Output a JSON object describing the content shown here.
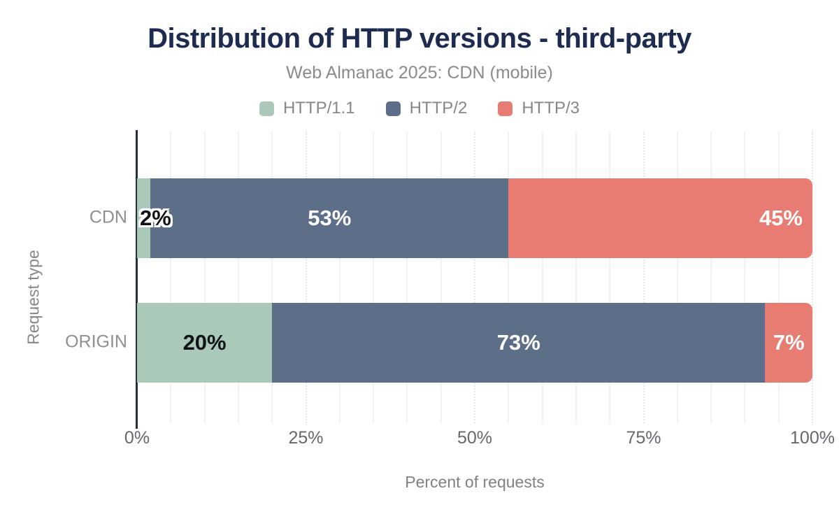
{
  "chart_data": {
    "type": "bar",
    "variant": "horizontal-stacked",
    "title": "Distribution of HTTP versions - third-party",
    "subtitle": "Web Almanac 2025: CDN (mobile)",
    "xlabel": "Percent of requests",
    "ylabel": "Request type",
    "categories": [
      "CDN",
      "ORIGIN"
    ],
    "series": [
      {
        "name": "HTTP/1.1",
        "color": "#abc9b8",
        "values": [
          2,
          20
        ]
      },
      {
        "name": "HTTP/2",
        "color": "#5d6e89",
        "values": [
          53,
          73
        ]
      },
      {
        "name": "HTTP/3",
        "color": "#e87c72",
        "values": [
          45,
          7
        ]
      }
    ],
    "xlim": [
      0,
      100
    ],
    "x_ticks": [
      0,
      25,
      50,
      75,
      100
    ],
    "x_tick_labels": [
      "0%",
      "25%",
      "50%",
      "75%",
      "100%"
    ],
    "value_suffix": "%",
    "grid": {
      "minor_step": 5,
      "major_step": 25,
      "on": true
    },
    "legend_position": "top",
    "axis_color": "#252e3c",
    "label_layout": [
      [
        {
          "variant": "dark-halo",
          "align": "start"
        },
        {
          "variant": "light",
          "align": "center"
        },
        {
          "variant": "light",
          "align": "end"
        }
      ],
      [
        {
          "variant": "dark",
          "align": "center"
        },
        {
          "variant": "light",
          "align": "center"
        },
        {
          "variant": "light",
          "align": "center"
        }
      ]
    ]
  }
}
